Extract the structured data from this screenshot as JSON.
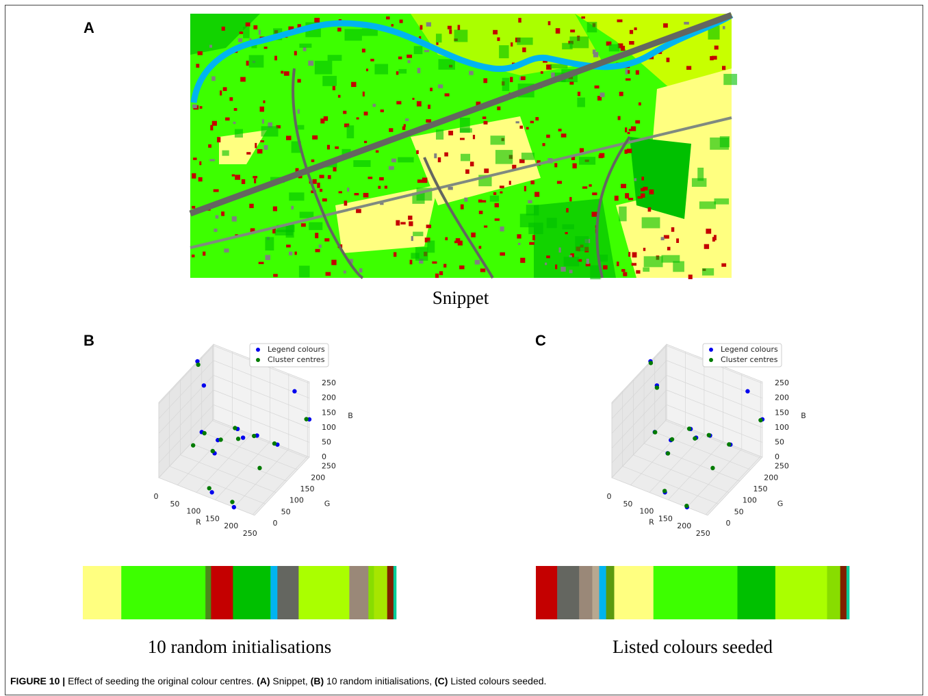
{
  "panels": {
    "a": {
      "label": "A",
      "caption": "Snippet"
    },
    "b": {
      "label": "B",
      "caption": "10 random initialisations"
    },
    "c": {
      "label": "C",
      "caption": "Listed colours seeded"
    }
  },
  "figure_caption": {
    "label": "FIGURE 10 |",
    "text": "Effect of seeding the original colour centres.",
    "parts": [
      {
        "tag": "(A)",
        "text": "Snippet,"
      },
      {
        "tag": "(B)",
        "text": "10 random initialisations,"
      },
      {
        "tag": "(C)",
        "text": "Listed colours seeded."
      }
    ]
  },
  "chart_data": [
    {
      "type": "scatter3d",
      "xlabel": "R",
      "ylabel": "G",
      "zlabel": "B",
      "xlim": [
        0,
        255
      ],
      "ylim": [
        0,
        255
      ],
      "zlim": [
        0,
        255
      ],
      "xticks": [
        0,
        50,
        100,
        150,
        200,
        250
      ],
      "yticks": [
        0,
        50,
        100,
        150,
        200,
        250
      ],
      "zticks": [
        0,
        50,
        100,
        150,
        200,
        250
      ],
      "grid": true,
      "legend": "upper right",
      "series": [
        {
          "name": "Legend colours",
          "color": "#0000ee",
          "x": [
            255,
            64,
            0,
            200,
            0,
            100,
            170,
            150,
            130,
            130,
            0,
            80,
            230
          ],
          "y": [
            255,
            255,
            200,
            0,
            180,
            100,
            255,
            130,
            230,
            20,
            210,
            120,
            230
          ],
          "z": [
            128,
            0,
            0,
            0,
            255,
            100,
            0,
            110,
            30,
            0,
            150,
            30,
            230
          ]
        },
        {
          "name": "Cluster centres",
          "color": "#007a00",
          "x": [
            250,
            60,
            10,
            190,
            5,
            105,
            165,
            140,
            125,
            120,
            40,
            75,
            200
          ],
          "y": [
            250,
            250,
            195,
            10,
            175,
            105,
            250,
            125,
            225,
            25,
            90,
            120,
            120
          ],
          "z": [
            130,
            5,
            5,
            5,
            250,
            100,
            5,
            105,
            30,
            5,
            60,
            35,
            40
          ]
        }
      ]
    },
    {
      "type": "scatter3d",
      "xlabel": "R",
      "ylabel": "G",
      "zlabel": "B",
      "xlim": [
        0,
        255
      ],
      "ylim": [
        0,
        255
      ],
      "zlim": [
        0,
        255
      ],
      "xticks": [
        0,
        50,
        100,
        150,
        200,
        250
      ],
      "yticks": [
        0,
        50,
        100,
        150,
        200,
        250
      ],
      "zticks": [
        0,
        50,
        100,
        150,
        200,
        250
      ],
      "grid": true,
      "legend": "upper right",
      "series": [
        {
          "name": "Legend colours",
          "color": "#0000ee",
          "x": [
            255,
            64,
            0,
            200,
            0,
            100,
            170,
            150,
            130,
            130,
            0,
            80,
            230
          ],
          "y": [
            255,
            255,
            200,
            0,
            180,
            100,
            255,
            130,
            230,
            20,
            210,
            120,
            230
          ],
          "z": [
            128,
            0,
            0,
            0,
            255,
            100,
            0,
            110,
            30,
            0,
            150,
            30,
            230
          ]
        },
        {
          "name": "Cluster centres",
          "color": "#007a00",
          "x": [
            252,
            62,
            2,
            198,
            2,
            102,
            168,
            148,
            128,
            128,
            3,
            82,
            200
          ],
          "y": [
            252,
            252,
            198,
            2,
            178,
            102,
            252,
            128,
            228,
            22,
            205,
            118,
            120
          ],
          "z": [
            126,
            2,
            2,
            2,
            252,
            102,
            2,
            108,
            32,
            2,
            148,
            32,
            40
          ]
        }
      ]
    },
    {
      "type": "colour-bar",
      "values": [
        12.3,
        26.9,
        1.8,
        7.0,
        12.0,
        2.2,
        6.8,
        16.2,
        6.1,
        1.8,
        4.2,
        2.0,
        0.9
      ],
      "colors": [
        "#ffff80",
        "#3dff00",
        "#4a8a1a",
        "#c40000",
        "#00c000",
        "#00b4f0",
        "#646660",
        "#aaff00",
        "#9a8878",
        "#88dd00",
        "#a6e600",
        "#802000",
        "#00cc99"
      ]
    },
    {
      "type": "colour-bar",
      "values": [
        6.8,
        7.0,
        4.2,
        2.2,
        2.2,
        2.6,
        12.5,
        26.8,
        12.1,
        16.5,
        4.2,
        2.0,
        0.9
      ],
      "colors": [
        "#c40000",
        "#646660",
        "#9a8878",
        "#b8a890",
        "#00b4f0",
        "#5a9a10",
        "#ffff80",
        "#3dff00",
        "#00c000",
        "#aaff00",
        "#88dd00",
        "#802000",
        "#00cc99"
      ]
    }
  ]
}
